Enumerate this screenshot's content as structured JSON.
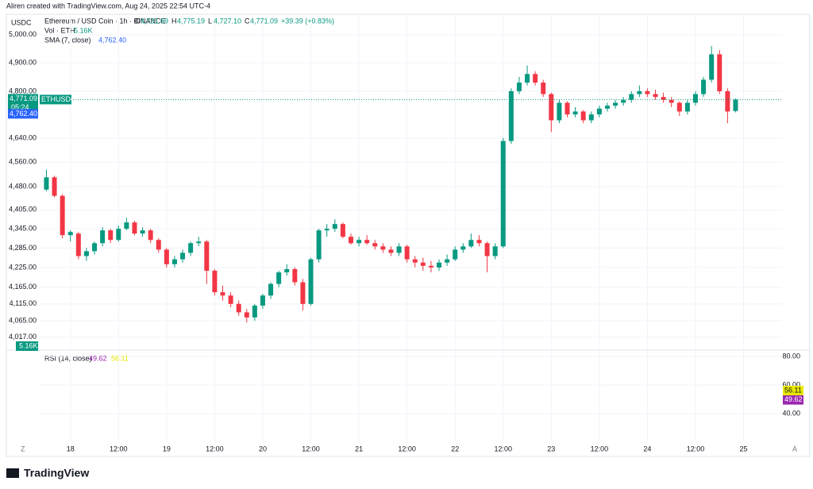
{
  "header": {
    "credit": "Aliren created with TradingView.com, Aug 24, 2025 22:54 UTC-4",
    "brand": "TradingView"
  },
  "chart_data": {
    "type": "candlestick",
    "symbol": "Ethereum / USD Coin · 1h · BINANCE",
    "ohlc_labels": [
      "O",
      "H",
      "L",
      "C"
    ],
    "ohlc_values": [
      "4,731.69",
      "4,775.19",
      "4,727.10",
      "4,771.09"
    ],
    "change": "+39.39 (+0.83%)",
    "volume_label": "Vol · ETH",
    "volume_value": "5.16K",
    "sma_label": "SMA (7, close)",
    "sma_value": {
      "value": 4762.4,
      "label": "4,762.40"
    },
    "last_price": {
      "value": 4771.09,
      "label": "4,771.09"
    },
    "countdown": "05:24",
    "ticker": "ETHUSDC",
    "currency": "USDC",
    "up_color": "#089981",
    "down_color": "#f23645",
    "log_scale": true,
    "grid": true,
    "ylim": [
      3982,
      5069
    ],
    "yticks": [
      {
        "value": 5000,
        "label": "5,000.00"
      },
      {
        "value": 4900,
        "label": "4,900.00"
      },
      {
        "value": 4800,
        "label": "4,800.00"
      },
      {
        "value": 4640,
        "label": "4,640.00"
      },
      {
        "value": 4560,
        "label": "4,560.00"
      },
      {
        "value": 4480,
        "label": "4,480.00"
      },
      {
        "value": 4405,
        "label": "4,405.00"
      },
      {
        "value": 4345,
        "label": "4,345.00"
      },
      {
        "value": 4285,
        "label": "4,285.00"
      },
      {
        "value": 4225,
        "label": "4,225.00"
      },
      {
        "value": 4165,
        "label": "4,165.00"
      },
      {
        "value": 4115,
        "label": "4,115.00"
      },
      {
        "value": 4065,
        "label": "4,065.00"
      },
      {
        "value": 4017,
        "label": "4,017.00"
      }
    ],
    "xlim": [
      -4.8,
      91.8
    ],
    "xticks": [
      {
        "value": 3,
        "label": "18"
      },
      {
        "value": 9,
        "label": "12:00"
      },
      {
        "value": 15,
        "label": "19"
      },
      {
        "value": 21,
        "label": "12:00"
      },
      {
        "value": 27,
        "label": "20"
      },
      {
        "value": 33,
        "label": "12:00"
      },
      {
        "value": 39,
        "label": "21"
      },
      {
        "value": 45,
        "label": "12:00"
      },
      {
        "value": 51,
        "label": "22"
      },
      {
        "value": 57,
        "label": "12:00"
      },
      {
        "value": 63,
        "label": "23"
      },
      {
        "value": 69,
        "label": "12:00"
      },
      {
        "value": 75,
        "label": "24"
      },
      {
        "value": 81,
        "label": "12:00"
      },
      {
        "value": 87,
        "label": "25"
      }
    ],
    "candles": [
      [
        4470,
        4535,
        4465,
        4510
      ],
      [
        4510,
        4515,
        4445,
        4450
      ],
      [
        4450,
        4455,
        4315,
        4325
      ],
      [
        4325,
        4340,
        4305,
        4335
      ],
      [
        4330,
        4335,
        4250,
        4260
      ],
      [
        4260,
        4285,
        4245,
        4275
      ],
      [
        4275,
        4305,
        4265,
        4300
      ],
      [
        4300,
        4350,
        4290,
        4340
      ],
      [
        4340,
        4345,
        4300,
        4310
      ],
      [
        4310,
        4355,
        4305,
        4345
      ],
      [
        4345,
        4380,
        4340,
        4365
      ],
      [
        4365,
        4370,
        4325,
        4330
      ],
      [
        4330,
        4350,
        4320,
        4340
      ],
      [
        4340,
        4345,
        4300,
        4310
      ],
      [
        4310,
        4315,
        4270,
        4280
      ],
      [
        4280,
        4285,
        4225,
        4235
      ],
      [
        4235,
        4260,
        4225,
        4250
      ],
      [
        4250,
        4280,
        4240,
        4270
      ],
      [
        4270,
        4305,
        4260,
        4300
      ],
      [
        4300,
        4320,
        4290,
        4305
      ],
      [
        4305,
        4310,
        4175,
        4215
      ],
      [
        4215,
        4220,
        4140,
        4150
      ],
      [
        4150,
        4170,
        4125,
        4140
      ],
      [
        4140,
        4150,
        4105,
        4115
      ],
      [
        4115,
        4125,
        4080,
        4090
      ],
      [
        4090,
        4100,
        4060,
        4075
      ],
      [
        4075,
        4115,
        4065,
        4110
      ],
      [
        4110,
        4145,
        4100,
        4140
      ],
      [
        4140,
        4180,
        4130,
        4175
      ],
      [
        4175,
        4215,
        4165,
        4210
      ],
      [
        4210,
        4235,
        4200,
        4220
      ],
      [
        4220,
        4225,
        4170,
        4180
      ],
      [
        4180,
        4190,
        4095,
        4115
      ],
      [
        4115,
        4255,
        4110,
        4250
      ],
      [
        4250,
        4345,
        4240,
        4340
      ],
      [
        4340,
        4360,
        4320,
        4345
      ],
      [
        4345,
        4375,
        4335,
        4360
      ],
      [
        4360,
        4365,
        4315,
        4320
      ],
      [
        4320,
        4330,
        4295,
        4300
      ],
      [
        4300,
        4320,
        4290,
        4310
      ],
      [
        4310,
        4325,
        4295,
        4300
      ],
      [
        4300,
        4310,
        4280,
        4290
      ],
      [
        4290,
        4300,
        4270,
        4280
      ],
      [
        4280,
        4290,
        4260,
        4270
      ],
      [
        4270,
        4300,
        4260,
        4290
      ],
      [
        4290,
        4295,
        4240,
        4250
      ],
      [
        4250,
        4260,
        4225,
        4240
      ],
      [
        4240,
        4255,
        4215,
        4230
      ],
      [
        4230,
        4245,
        4210,
        4225
      ],
      [
        4225,
        4250,
        4215,
        4240
      ],
      [
        4240,
        4265,
        4230,
        4250
      ],
      [
        4250,
        4290,
        4245,
        4280
      ],
      [
        4280,
        4300,
        4270,
        4290
      ],
      [
        4290,
        4330,
        4285,
        4310
      ],
      [
        4310,
        4325,
        4290,
        4300
      ],
      [
        4300,
        4305,
        4210,
        4260
      ],
      [
        4260,
        4300,
        4250,
        4290
      ],
      [
        4290,
        4640,
        4285,
        4630
      ],
      [
        4630,
        4810,
        4620,
        4800
      ],
      [
        4800,
        4850,
        4790,
        4830
      ],
      [
        4830,
        4890,
        4820,
        4860
      ],
      [
        4860,
        4870,
        4820,
        4830
      ],
      [
        4830,
        4840,
        4780,
        4790
      ],
      [
        4790,
        4795,
        4660,
        4700
      ],
      [
        4700,
        4770,
        4690,
        4760
      ],
      [
        4760,
        4765,
        4710,
        4720
      ],
      [
        4720,
        4745,
        4710,
        4730
      ],
      [
        4730,
        4735,
        4690,
        4700
      ],
      [
        4700,
        4730,
        4690,
        4720
      ],
      [
        4720,
        4750,
        4710,
        4740
      ],
      [
        4740,
        4760,
        4730,
        4750
      ],
      [
        4750,
        4770,
        4740,
        4760
      ],
      [
        4760,
        4780,
        4750,
        4770
      ],
      [
        4770,
        4800,
        4760,
        4790
      ],
      [
        4790,
        4820,
        4780,
        4800
      ],
      [
        4800,
        4810,
        4780,
        4790
      ],
      [
        4790,
        4805,
        4770,
        4780
      ],
      [
        4780,
        4795,
        4760,
        4770
      ],
      [
        4770,
        4780,
        4745,
        4760
      ],
      [
        4760,
        4765,
        4715,
        4730
      ],
      [
        4730,
        4770,
        4720,
        4760
      ],
      [
        4760,
        4800,
        4750,
        4790
      ],
      [
        4790,
        4850,
        4780,
        4840
      ],
      [
        4840,
        4960,
        4830,
        4930
      ],
      [
        4930,
        4945,
        4790,
        4800
      ],
      [
        4800,
        4810,
        4690,
        4730
      ],
      [
        4731.69,
        4775.19,
        4727.1,
        4771.09
      ]
    ],
    "rsi": {
      "label": "RSI (14, close)",
      "values": [
        {
          "value": 49.62,
          "label": "49.62",
          "color": "#9c27b0"
        },
        {
          "value": 56.11,
          "label": "56.11",
          "color": "#e8e800"
        }
      ],
      "ylim": [
        21.1,
        83.3
      ],
      "yticks": [
        {
          "value": 80,
          "label": "80.00"
        },
        {
          "value": 60,
          "label": "60.00"
        },
        {
          "value": 40,
          "label": "40.00"
        }
      ]
    },
    "corner_left": "Z",
    "corner_right": "A"
  }
}
